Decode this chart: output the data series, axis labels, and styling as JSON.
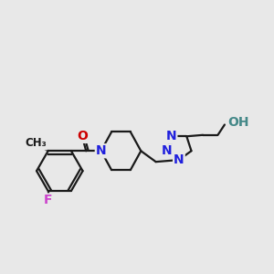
{
  "bg_color": "#e8e8e8",
  "bond_color": "#1a1a1a",
  "nitrogen_color": "#2020dd",
  "oxygen_color": "#cc0000",
  "fluorine_color": "#cc44cc",
  "hydroxyl_color": "#448888",
  "line_width": 1.6,
  "dbo": 0.09,
  "fig_w": 3.0,
  "fig_h": 3.0,
  "dpi": 100,
  "xlim": [
    0,
    10
  ],
  "ylim": [
    1,
    9
  ]
}
